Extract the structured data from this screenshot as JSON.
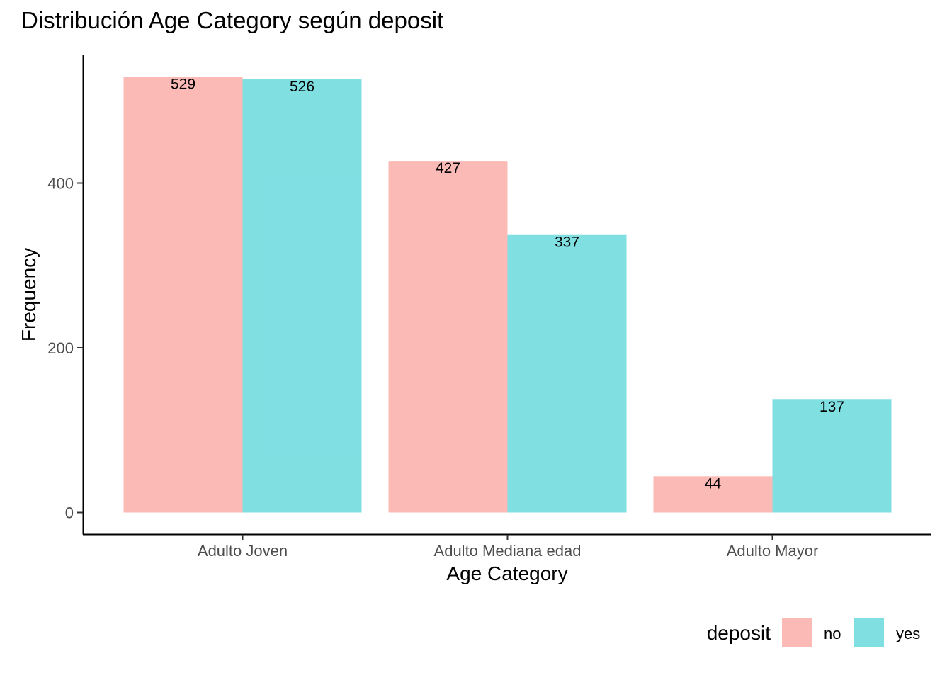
{
  "chart_data": {
    "type": "bar",
    "title": "Distribución Age Category según deposit",
    "xlabel": "Age Category",
    "ylabel": "Frequency",
    "categories": [
      "Adulto Joven",
      "Adulto Mediana edad",
      "Adulto Mayor"
    ],
    "series": [
      {
        "name": "no",
        "color": "#F8766D",
        "values": [
          529,
          427,
          44
        ]
      },
      {
        "name": "yes",
        "color": "#00BFC4",
        "values": [
          526,
          337,
          137
        ]
      }
    ],
    "bar_opacity": 0.5,
    "ylim": [
      0,
      555
    ],
    "yticks": [
      0,
      200,
      400
    ],
    "ytick_labels": [
      "0",
      "200",
      "400"
    ],
    "grid": false,
    "legend": {
      "title": "deposit",
      "position": "bottom-right"
    }
  }
}
